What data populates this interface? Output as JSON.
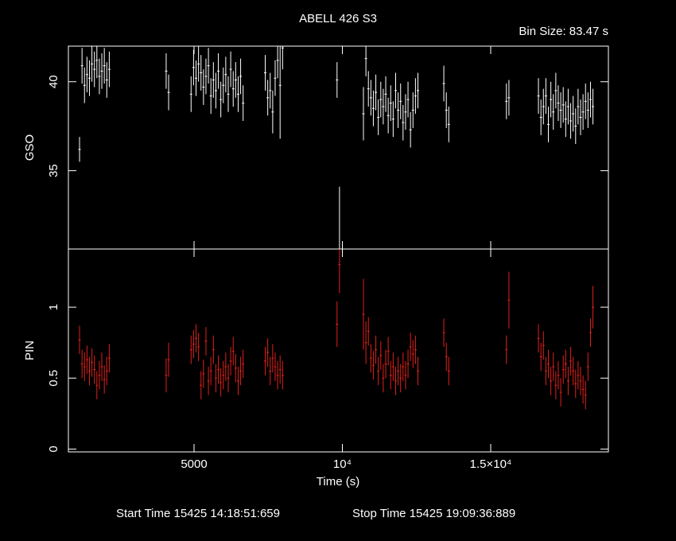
{
  "chart_data": {
    "type": "errorbar",
    "title": "ABELL 426 S3",
    "subtitle": "Bin Size: 83.47 s",
    "xlabel": "Time (s)",
    "start_time": "Start Time 15425 14:18:51:659",
    "stop_time": "Stop Time 15425 19:09:36:889",
    "xlim": [
      764,
      18968
    ],
    "xticks": [
      5000,
      {
        "value": 10000,
        "label": "10⁴"
      },
      {
        "value": 15000,
        "label": "1.5×10⁴"
      }
    ],
    "x": [
      1140,
      1224,
      1307,
      1390,
      1474,
      1557,
      1641,
      1724,
      1808,
      1891,
      1975,
      2058,
      2142,
      4060,
      4143,
      4900,
      4984,
      5067,
      5151,
      5234,
      5318,
      5401,
      5485,
      5568,
      5652,
      5735,
      5819,
      5902,
      5986,
      6069,
      6153,
      6236,
      6320,
      6403,
      6487,
      6570,
      6654,
      7400,
      7484,
      7567,
      7651,
      7734,
      7818,
      7901,
      7985,
      9820,
      9903,
      10710,
      10794,
      10877,
      10961,
      11044,
      11128,
      11211,
      11295,
      11378,
      11462,
      11545,
      11629,
      11712,
      11796,
      11879,
      11963,
      12046,
      12130,
      12213,
      12297,
      12380,
      12464,
      12547,
      13420,
      13504,
      13587,
      15530,
      15614,
      16610,
      16694,
      16777,
      16861,
      16944,
      17028,
      17111,
      17195,
      17278,
      17362,
      17445,
      17529,
      17612,
      17696,
      17779,
      17863,
      17946,
      18030,
      18113,
      18197,
      18280,
      18364,
      18447
    ],
    "panels": [
      {
        "ylabel": "GSO",
        "color": "#ffffff",
        "ylim": [
          30.6,
          42
        ],
        "yticks": [
          35,
          40
        ],
        "values": [
          36.2,
          40.9,
          39.8,
          40.4,
          40.2,
          41.0,
          40.7,
          41.2,
          40.3,
          40.6,
          40.9,
          40.1,
          40.7,
          40.6,
          39.4,
          39.3,
          40.8,
          40.2,
          41.0,
          40.5,
          39.7,
          40.3,
          40.9,
          39.2,
          40.1,
          39.5,
          40.6,
          39.0,
          39.8,
          40.4,
          39.3,
          40.7,
          39.6,
          40.1,
          39.3,
          40.3,
          38.8,
          40.5,
          39.1,
          39.5,
          38.3,
          40.2,
          41.2,
          39.8,
          41.9,
          40.1,
          30.6,
          38.2,
          41.3,
          39.6,
          39.1,
          38.5,
          39.4,
          38.0,
          39.0,
          38.6,
          39.3,
          38.1,
          38.8,
          37.9,
          39.5,
          38.4,
          38.9,
          37.7,
          38.3,
          39.0,
          37.3,
          38.4,
          39.2,
          39.5,
          39.9,
          38.4,
          37.6,
          38.9,
          39.1,
          39.2,
          38.0,
          38.6,
          39.2,
          37.6,
          39.0,
          38.3,
          39.5,
          38.8,
          38.4,
          38.7,
          37.9,
          38.6,
          37.8,
          38.2,
          37.5,
          38.6,
          38.0,
          38.3,
          38.9,
          38.4,
          39.0,
          38.6
        ],
        "errors": [
          0.7,
          1.0,
          1.0,
          1.0,
          1.0,
          1.0,
          1.0,
          1.0,
          1.0,
          1.0,
          1.0,
          1.0,
          1.0,
          1.0,
          1.0,
          1.0,
          1.0,
          1.0,
          1.0,
          1.0,
          1.0,
          1.0,
          1.0,
          1.0,
          1.0,
          1.0,
          1.0,
          1.0,
          1.0,
          1.0,
          1.0,
          1.0,
          1.0,
          1.0,
          1.0,
          1.0,
          1.0,
          1.0,
          1.0,
          1.0,
          1.2,
          1.0,
          1.0,
          3.0,
          1.2,
          1.0,
          3.5,
          1.5,
          1.0,
          1.0,
          1.0,
          1.0,
          1.0,
          1.0,
          1.0,
          1.0,
          1.0,
          1.0,
          1.0,
          1.0,
          1.0,
          1.0,
          1.0,
          1.0,
          1.0,
          1.0,
          1.0,
          1.0,
          1.0,
          1.0,
          1.0,
          1.0,
          1.0,
          1.0,
          1.0,
          1.0,
          1.0,
          1.0,
          1.0,
          1.0,
          1.0,
          1.0,
          1.0,
          1.0,
          1.0,
          1.0,
          1.0,
          1.0,
          1.0,
          1.0,
          1.0,
          1.0,
          1.0,
          1.0,
          1.0,
          1.0,
          1.0,
          1.0
        ]
      },
      {
        "ylabel": "PIN",
        "color": "#e0201a",
        "ylim": [
          -0.02,
          1.41
        ],
        "yticks": [
          0,
          0.5,
          1
        ],
        "values": [
          0.77,
          0.6,
          0.58,
          0.63,
          0.55,
          0.61,
          0.56,
          0.45,
          0.52,
          0.58,
          0.49,
          0.55,
          0.64,
          0.52,
          0.63,
          0.7,
          0.74,
          0.78,
          0.72,
          0.45,
          0.53,
          0.76,
          0.48,
          0.55,
          0.7,
          0.5,
          0.56,
          0.47,
          0.52,
          0.58,
          0.5,
          0.62,
          0.69,
          0.57,
          0.48,
          0.55,
          0.6,
          0.62,
          0.68,
          0.55,
          0.64,
          0.58,
          0.52,
          0.56,
          0.52,
          0.88,
          1.3,
          0.95,
          0.75,
          0.83,
          0.64,
          0.59,
          0.7,
          0.55,
          0.66,
          0.5,
          0.6,
          0.69,
          0.52,
          0.58,
          0.48,
          0.55,
          0.5,
          0.58,
          0.52,
          0.6,
          0.72,
          0.67,
          0.7,
          0.55,
          0.82,
          0.65,
          0.55,
          0.7,
          1.05,
          0.78,
          0.65,
          0.73,
          0.55,
          0.6,
          0.48,
          0.58,
          0.45,
          0.52,
          0.4,
          0.56,
          0.6,
          0.48,
          0.62,
          0.55,
          0.46,
          0.52,
          0.48,
          0.42,
          0.38,
          0.58,
          0.82,
          1.0
        ],
        "errors": [
          0.1,
          0.1,
          0.1,
          0.1,
          0.1,
          0.1,
          0.1,
          0.1,
          0.1,
          0.1,
          0.1,
          0.1,
          0.1,
          0.12,
          0.12,
          0.1,
          0.1,
          0.1,
          0.1,
          0.1,
          0.1,
          0.1,
          0.1,
          0.1,
          0.1,
          0.1,
          0.1,
          0.1,
          0.1,
          0.1,
          0.1,
          0.1,
          0.1,
          0.1,
          0.1,
          0.1,
          0.1,
          0.1,
          0.1,
          0.1,
          0.1,
          0.1,
          0.1,
          0.1,
          0.1,
          0.16,
          0.2,
          0.25,
          0.15,
          0.1,
          0.1,
          0.1,
          0.1,
          0.1,
          0.1,
          0.1,
          0.1,
          0.1,
          0.1,
          0.1,
          0.1,
          0.1,
          0.1,
          0.1,
          0.1,
          0.1,
          0.1,
          0.1,
          0.1,
          0.1,
          0.1,
          0.1,
          0.1,
          0.1,
          0.2,
          0.1,
          0.1,
          0.1,
          0.1,
          0.1,
          0.1,
          0.1,
          0.1,
          0.1,
          0.1,
          0.1,
          0.1,
          0.1,
          0.1,
          0.1,
          0.1,
          0.1,
          0.1,
          0.1,
          0.1,
          0.1,
          0.1,
          0.15
        ]
      }
    ]
  }
}
